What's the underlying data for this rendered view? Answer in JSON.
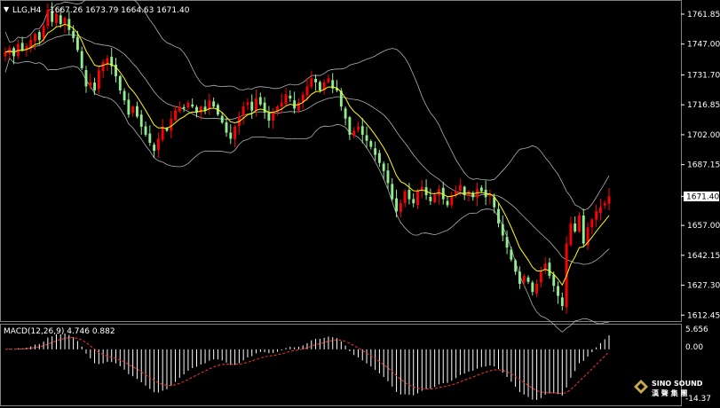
{
  "header": {
    "symbol_label": "LLG,H4",
    "ohlc_text": "1667.26 1673.79 1664.63 1671.40"
  },
  "macd": {
    "label": "MACD(12,26,9) 4.746 0.882",
    "axis_labels": [
      "5.656",
      "0.00",
      "-14.37"
    ]
  },
  "brand": {
    "logo_en": "SINO SOUND",
    "logo_cn": "漢 聲 集 團"
  },
  "colors": {
    "up": "#ff0000",
    "down": "#90ee90",
    "ma": "#ffff00",
    "band": "#b0b0b0",
    "macd_hist": "#ffffff",
    "macd_signal": "#ff3030",
    "grid_border": "#808080"
  },
  "chart_data": {
    "type": "candlestick",
    "title": "LLG,H4",
    "price_axis": {
      "ticks": [
        1761.85,
        1747.0,
        1731.7,
        1716.85,
        1702.0,
        1687.15,
        1671.4,
        1657.0,
        1642.15,
        1627.3,
        1612.45
      ],
      "tick_labels": [
        "1761.85",
        "1747.00",
        "1731.70",
        "1716.85",
        "1702.00",
        "1687.15",
        "1671.40",
        "1657.00",
        "1642.15",
        "1627.30",
        "1612.45"
      ],
      "ylim": [
        1609.5,
        1768.0
      ],
      "current_price": 1671.4,
      "current_price_label": "1671.40"
    },
    "closes": [
      1743,
      1745,
      1741,
      1747,
      1744,
      1746,
      1749,
      1752,
      1749,
      1756,
      1764,
      1758,
      1762,
      1757,
      1760,
      1754,
      1750,
      1744,
      1735,
      1726,
      1728,
      1724,
      1734,
      1738,
      1740,
      1736,
      1731,
      1724,
      1719,
      1712,
      1716,
      1711,
      1706,
      1702,
      1698,
      1694,
      1700,
      1706,
      1704,
      1710,
      1714,
      1716,
      1715,
      1718,
      1716,
      1713,
      1716,
      1714,
      1719,
      1716,
      1712,
      1708,
      1703,
      1700,
      1706,
      1711,
      1716,
      1718,
      1714,
      1720,
      1717,
      1713,
      1709,
      1713,
      1716,
      1718,
      1722,
      1720,
      1715,
      1718,
      1722,
      1726,
      1730,
      1728,
      1724,
      1728,
      1730,
      1725,
      1724,
      1716,
      1710,
      1702,
      1704,
      1706,
      1702,
      1699,
      1696,
      1692,
      1688,
      1684,
      1678,
      1670,
      1664,
      1668,
      1674,
      1670,
      1668,
      1674,
      1676,
      1672,
      1669,
      1672,
      1675,
      1670,
      1667,
      1672,
      1674,
      1677,
      1672,
      1674,
      1671,
      1675,
      1674,
      1671,
      1672,
      1666,
      1658,
      1652,
      1646,
      1640,
      1634,
      1628,
      1632,
      1629,
      1624,
      1628,
      1634,
      1638,
      1632,
      1627,
      1622,
      1617,
      1648,
      1658,
      1654,
      1662,
      1648,
      1656,
      1660,
      1664,
      1666,
      1668,
      1671.4
    ],
    "moving_average": "close EMA (yellow)",
    "bollinger_bands": "upper/lower envelopes (grey)",
    "macd": {
      "params": "12,26,9",
      "macd_value": 4.746,
      "signal_value": 0.882,
      "ylim": [
        -14.37,
        5.656
      ]
    }
  }
}
